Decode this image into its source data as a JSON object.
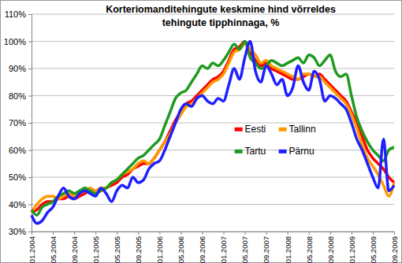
{
  "chart_data": {
    "type": "line",
    "title": "Korteriomanditehingute keskmine hind võrreldes\ntehingute tipphinnaga, %",
    "categories": [
      "01.2004",
      null,
      null,
      null,
      "05.2004",
      null,
      null,
      null,
      "09.2004",
      null,
      null,
      null,
      "01.2005",
      null,
      null,
      null,
      "05.2005",
      null,
      null,
      null,
      "09.2005",
      null,
      null,
      null,
      "01.2006",
      null,
      null,
      null,
      "05.2006",
      null,
      null,
      null,
      "09.2006",
      null,
      null,
      null,
      "01.2007",
      null,
      null,
      null,
      "05.2007",
      null,
      null,
      null,
      "09.2007",
      null,
      null,
      null,
      "01.2008",
      null,
      null,
      null,
      "05.2008",
      null,
      null,
      null,
      "09.2008",
      null,
      null,
      null,
      "01.2009",
      null,
      null,
      null,
      "05.2009",
      null,
      null,
      null,
      "09.2009"
    ],
    "series": [
      {
        "name": "Eesti",
        "color": "#ff0000",
        "values": [
          37,
          38,
          40,
          41,
          41,
          42,
          42,
          43,
          42,
          43,
          44,
          45,
          44,
          45,
          46,
          47,
          48,
          50,
          51,
          53,
          54,
          55,
          55,
          57,
          60,
          63,
          67,
          71,
          74,
          77,
          78,
          80,
          82,
          84,
          86,
          87,
          89,
          93,
          97,
          98,
          100,
          96,
          93,
          91,
          92,
          90,
          89,
          88,
          87,
          86,
          86,
          87,
          88,
          87,
          88,
          86,
          84,
          82,
          80,
          78,
          74,
          70,
          65,
          60,
          57,
          55,
          53,
          50,
          48
        ]
      },
      {
        "name": "Tallinn",
        "color": "#ff9900",
        "values": [
          37,
          40,
          42,
          43,
          43,
          42,
          43,
          44,
          43,
          44,
          45,
          46,
          45,
          46,
          46,
          48,
          49,
          51,
          52,
          53,
          55,
          56,
          55,
          57,
          60,
          63,
          66,
          70,
          73,
          76,
          77,
          79,
          81,
          83,
          85,
          86,
          88,
          92,
          96,
          97,
          99,
          97,
          95,
          92,
          93,
          91,
          90,
          89,
          88,
          87,
          86,
          88,
          88,
          87,
          87,
          85,
          83,
          81,
          79,
          77,
          73,
          68,
          62,
          57,
          54,
          51,
          47,
          43,
          48
        ]
      },
      {
        "name": "Tartu",
        "color": "#1f9a1f",
        "values": [
          38,
          36,
          39,
          40,
          41,
          43,
          44,
          45,
          44,
          45,
          46,
          45,
          44,
          45,
          46,
          48,
          49,
          51,
          53,
          55,
          57,
          58,
          60,
          62,
          64,
          69,
          74,
          79,
          81,
          82,
          85,
          88,
          91,
          90,
          92,
          91,
          93,
          96,
          99,
          97,
          100,
          94,
          92,
          90,
          91,
          93,
          92,
          91,
          92,
          93,
          94,
          92,
          95,
          94,
          91,
          93,
          95,
          89,
          87,
          88,
          80,
          72,
          67,
          63,
          60,
          58,
          56,
          60,
          61
        ]
      },
      {
        "name": "Pärnu",
        "color": "#1f1fff",
        "values": [
          36,
          33,
          34,
          37,
          39,
          43,
          46,
          43,
          42,
          44,
          45,
          44,
          43,
          46,
          44,
          41,
          45,
          47,
          46,
          50,
          48,
          49,
          53,
          55,
          56,
          60,
          65,
          70,
          75,
          77,
          76,
          79,
          80,
          78,
          77,
          79,
          78,
          84,
          90,
          86,
          94,
          100,
          89,
          85,
          91,
          88,
          84,
          86,
          80,
          83,
          91,
          85,
          82,
          89,
          86,
          78,
          80,
          79,
          77,
          75,
          70,
          64,
          60,
          55,
          50,
          46,
          64,
          45,
          47
        ]
      }
    ],
    "ylim": [
      30,
      110
    ],
    "yticks": [
      {
        "value": 30,
        "label": "30%"
      },
      {
        "value": 40,
        "label": "40%"
      },
      {
        "value": 50,
        "label": "50%"
      },
      {
        "value": 60,
        "label": "60%"
      },
      {
        "value": 70,
        "label": "70%"
      },
      {
        "value": 80,
        "label": "80%"
      },
      {
        "value": 90,
        "label": "90%"
      },
      {
        "value": 100,
        "label": "100%"
      },
      {
        "value": 110,
        "label": "110%"
      }
    ],
    "grid": true,
    "legend": "center"
  }
}
